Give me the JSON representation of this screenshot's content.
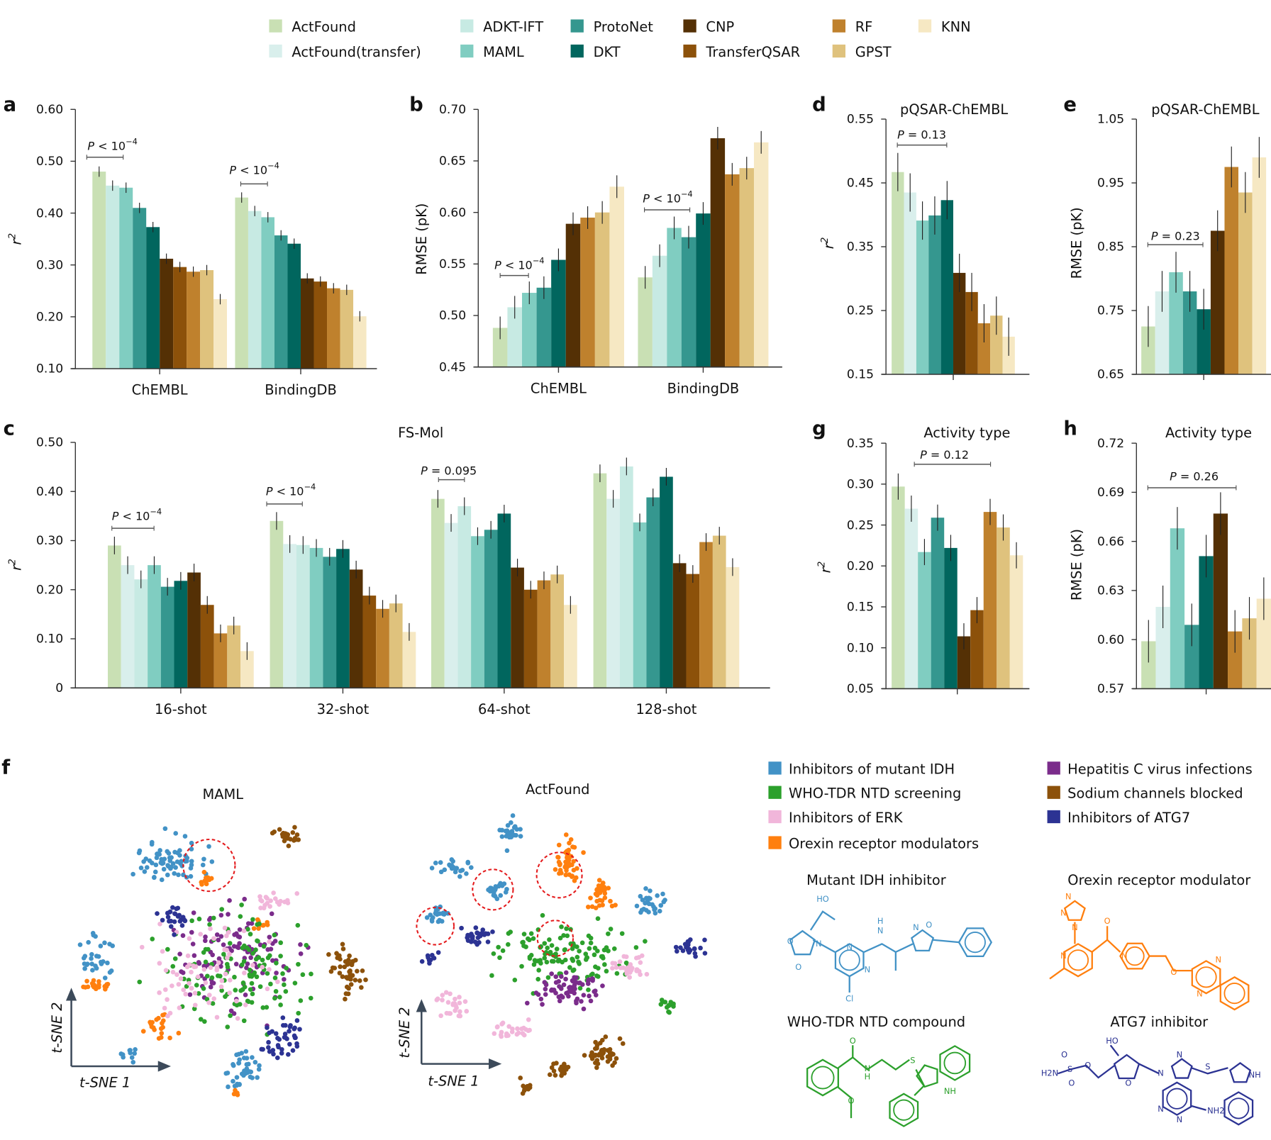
{
  "legend": {
    "items": [
      {
        "name": "ActFound",
        "color": "#c9e0b4"
      },
      {
        "name": "ActFound(transfer)",
        "color": "#d9efec"
      },
      {
        "name": "ADKT-IFT",
        "color": "#c7eae3"
      },
      {
        "name": "MAML",
        "color": "#80cdc1"
      },
      {
        "name": "ProtoNet",
        "color": "#35978f"
      },
      {
        "name": "DKT",
        "color": "#01665e"
      },
      {
        "name": "CNP",
        "color": "#543005"
      },
      {
        "name": "TransferQSAR",
        "color": "#8c510a"
      },
      {
        "name": "RF",
        "color": "#bf812d"
      },
      {
        "name": "GPST",
        "color": "#dfc27d"
      },
      {
        "name": "KNN",
        "color": "#f6e8c3"
      }
    ]
  },
  "panel_labels": {
    "a": "a",
    "b": "b",
    "c": "c",
    "d": "d",
    "e": "e",
    "f": "f",
    "g": "g",
    "h": "h"
  },
  "chart_data": [
    {
      "id": "a",
      "type": "bar",
      "title": "",
      "xlabel": "",
      "ylabel": "r2",
      "ylim": [
        0.1,
        0.6
      ],
      "yticks": [
        "0.10",
        "0.20",
        "0.30",
        "0.40",
        "0.50",
        "0.60"
      ],
      "categories": [
        "ChEMBL",
        "BindingDB"
      ],
      "series_names": [
        "ActFound",
        "ADKT-IFT",
        "MAML",
        "ProtoNet",
        "DKT",
        "CNP",
        "TransferQSAR",
        "RF",
        "GPST",
        "KNN"
      ],
      "values": [
        [
          0.48,
          0.453,
          0.449,
          0.41,
          0.373,
          0.312,
          0.296,
          0.287,
          0.29,
          0.234
        ],
        [
          0.43,
          0.404,
          0.392,
          0.357,
          0.341,
          0.274,
          0.268,
          0.255,
          0.252,
          0.201
        ]
      ],
      "error": 0.01,
      "annotations": [
        {
          "p": "P",
          "rel": " < 10",
          "exp": "−4"
        },
        {
          "p": "P",
          "rel": " < 10",
          "exp": "−4"
        }
      ]
    },
    {
      "id": "b",
      "type": "bar",
      "title": "",
      "xlabel": "",
      "ylabel": "RMSE (pK)",
      "ylim": [
        0.45,
        0.7
      ],
      "yticks": [
        "0.45",
        "0.50",
        "0.55",
        "0.60",
        "0.65",
        "0.70"
      ],
      "categories": [
        "ChEMBL",
        "BindingDB"
      ],
      "series_names": [
        "ActFound",
        "ADKT-IFT",
        "MAML",
        "ProtoNet",
        "DKT",
        "CNP",
        "RF",
        "GPST",
        "KNN"
      ],
      "values": [
        [
          0.488,
          0.508,
          0.522,
          0.527,
          0.554,
          0.589,
          0.595,
          0.6,
          0.625
        ],
        [
          0.537,
          0.558,
          0.585,
          0.576,
          0.599,
          0.672,
          0.637,
          0.643,
          0.668
        ]
      ],
      "error": 0.011,
      "annotations": [
        {
          "p": "P",
          "rel": " < 10",
          "exp": "−4"
        },
        {
          "p": "P",
          "rel": " < 10",
          "exp": "−4"
        }
      ]
    },
    {
      "id": "d",
      "type": "bar",
      "title": "pQSAR-ChEMBL",
      "xlabel": "",
      "ylabel": "r2",
      "ylim": [
        0.15,
        0.55
      ],
      "yticks": [
        "0.15",
        "0.25",
        "0.35",
        "0.45",
        "0.55"
      ],
      "categories": [
        ""
      ],
      "series_names": [
        "ActFound",
        "ActFound(transfer)",
        "MAML",
        "ProtoNet",
        "DKT",
        "CNP",
        "TransferQSAR",
        "RF",
        "GPST",
        "KNN"
      ],
      "values": [
        [
          0.467,
          0.435,
          0.391,
          0.399,
          0.423,
          0.309,
          0.279,
          0.23,
          0.242,
          0.209
        ]
      ],
      "error": 0.03,
      "annotations": [
        {
          "p": "P",
          "rel": " = 0.13",
          "exp": ""
        }
      ]
    },
    {
      "id": "e",
      "type": "bar",
      "title": "pQSAR-ChEMBL",
      "xlabel": "",
      "ylabel": "RMSE (pK)",
      "ylim": [
        0.65,
        1.05
      ],
      "yticks": [
        "0.65",
        "0.75",
        "0.85",
        "0.95",
        "1.05"
      ],
      "categories": [
        ""
      ],
      "series_names": [
        "ActFound",
        "ActFound(transfer)",
        "MAML",
        "ProtoNet",
        "DKT",
        "CNP",
        "RF",
        "GPST",
        "KNN"
      ],
      "values": [
        [
          0.725,
          0.78,
          0.81,
          0.78,
          0.752,
          0.875,
          0.975,
          0.935,
          0.99
        ]
      ],
      "error": 0.032,
      "annotations": [
        {
          "p": "P",
          "rel": " = 0.23",
          "exp": ""
        }
      ]
    },
    {
      "id": "c",
      "type": "bar",
      "title": "FS-Mol",
      "xlabel": "",
      "ylabel": "r2",
      "ylim": [
        0,
        0.5
      ],
      "yticks": [
        "0",
        "0.10",
        "0.20",
        "0.30",
        "0.40",
        "0.50"
      ],
      "categories": [
        "16-shot",
        "32-shot",
        "64-shot",
        "128-shot"
      ],
      "series_names": [
        "ActFound",
        "ActFound(transfer)",
        "ADKT-IFT",
        "MAML",
        "ProtoNet",
        "DKT",
        "CNP",
        "TransferQSAR",
        "RF",
        "GPST",
        "KNN"
      ],
      "values": [
        [
          0.29,
          0.25,
          0.221,
          0.25,
          0.206,
          0.218,
          0.235,
          0.169,
          0.111,
          0.127,
          0.075
        ],
        [
          0.34,
          0.293,
          0.291,
          0.285,
          0.267,
          0.283,
          0.241,
          0.188,
          0.161,
          0.172,
          0.114
        ],
        [
          0.385,
          0.336,
          0.37,
          0.309,
          0.322,
          0.355,
          0.245,
          0.2,
          0.219,
          0.231,
          0.169
        ],
        [
          0.437,
          0.385,
          0.451,
          0.337,
          0.388,
          0.43,
          0.254,
          0.232,
          0.297,
          0.31,
          0.246
        ]
      ],
      "error": 0.018,
      "annotations": [
        {
          "p": "P",
          "rel": " < 10",
          "exp": "−4"
        },
        {
          "p": "P",
          "rel": " < 10",
          "exp": "−4"
        },
        {
          "p": "P",
          "rel": " = 0.095",
          "exp": ""
        }
      ]
    },
    {
      "id": "g",
      "type": "bar",
      "title": "Activity type",
      "xlabel": "",
      "ylabel": "r2",
      "ylim": [
        0.05,
        0.35
      ],
      "yticks": [
        "0.05",
        "0.10",
        "0.15",
        "0.20",
        "0.25",
        "0.30",
        "0.35"
      ],
      "categories": [
        ""
      ],
      "series_names": [
        "ActFound",
        "ActFound(transfer)",
        "MAML",
        "ProtoNet",
        "DKT",
        "CNP",
        "TransferQSAR",
        "RF",
        "GPST",
        "KNN"
      ],
      "values": [
        [
          0.297,
          0.27,
          0.217,
          0.259,
          0.222,
          0.114,
          0.146,
          0.266,
          0.247,
          0.213
        ]
      ],
      "error": 0.016,
      "annotations": [
        {
          "p": "P",
          "rel": " = 0.12",
          "exp": ""
        }
      ]
    },
    {
      "id": "h",
      "type": "bar",
      "title": "Activity type",
      "xlabel": "",
      "ylabel": "RMSE (pK)",
      "ylim": [
        0.57,
        0.72
      ],
      "yticks": [
        "0.57",
        "0.60",
        "0.63",
        "0.66",
        "0.69",
        "0.72"
      ],
      "categories": [
        ""
      ],
      "series_names": [
        "ActFound",
        "ActFound(transfer)",
        "MAML",
        "ProtoNet",
        "DKT",
        "CNP",
        "RF",
        "GPST",
        "KNN"
      ],
      "values": [
        [
          0.599,
          0.62,
          0.668,
          0.609,
          0.651,
          0.677,
          0.605,
          0.613,
          0.625
        ]
      ],
      "error": 0.013,
      "annotations": [
        {
          "p": "P",
          "rel": " = 0.26",
          "exp": ""
        }
      ]
    }
  ],
  "tsne": {
    "type": "scatter",
    "panels": [
      {
        "title": "MAML"
      },
      {
        "title": "ActFound"
      }
    ],
    "xlabel": "t-SNE 1",
    "ylabel": "t-SNE 2",
    "classes": [
      {
        "name": "Inhibitors of mutant IDH",
        "color": "#4292c6"
      },
      {
        "name": "WHO-TDR NTD screening",
        "color": "#2ca02c"
      },
      {
        "name": "Inhibitors of ERK",
        "color": "#f1b6da"
      },
      {
        "name": "Orexin receptor modulators",
        "color": "#ff7f0e"
      },
      {
        "name": "Hepatitis C virus infections",
        "color": "#7b2c8b"
      },
      {
        "name": "Sodium channels blocked",
        "color": "#8c510a"
      },
      {
        "name": "Inhibitors of ATG7",
        "color": "#2c3393"
      }
    ],
    "highlight_color": "#e41a1c"
  },
  "molecules": [
    {
      "title": "Mutant IDH inhibitor",
      "color": "#4292c6",
      "atoms": [
        "HO",
        "O",
        "O",
        "N",
        "N",
        "N",
        "H",
        "N",
        "N",
        "O",
        "Cl"
      ]
    },
    {
      "title": "Orexin receptor modulator",
      "color": "#ff7f0e",
      "atoms": [
        "N",
        "N",
        "N",
        "N",
        "O",
        "N",
        "O",
        "N",
        "N"
      ]
    },
    {
      "title": "WHO-TDR NTD compound",
      "color": "#2ca02c",
      "atoms": [
        "O",
        "N",
        "H",
        "S",
        "NH",
        "O"
      ]
    },
    {
      "title": "ATG7 inhibitor",
      "color": "#2c3393",
      "atoms": [
        "HO",
        "H2N",
        "S",
        "O",
        "O",
        "O",
        "O",
        "N",
        "N",
        "S",
        "NH",
        "N",
        "N",
        "NH2"
      ]
    }
  ]
}
